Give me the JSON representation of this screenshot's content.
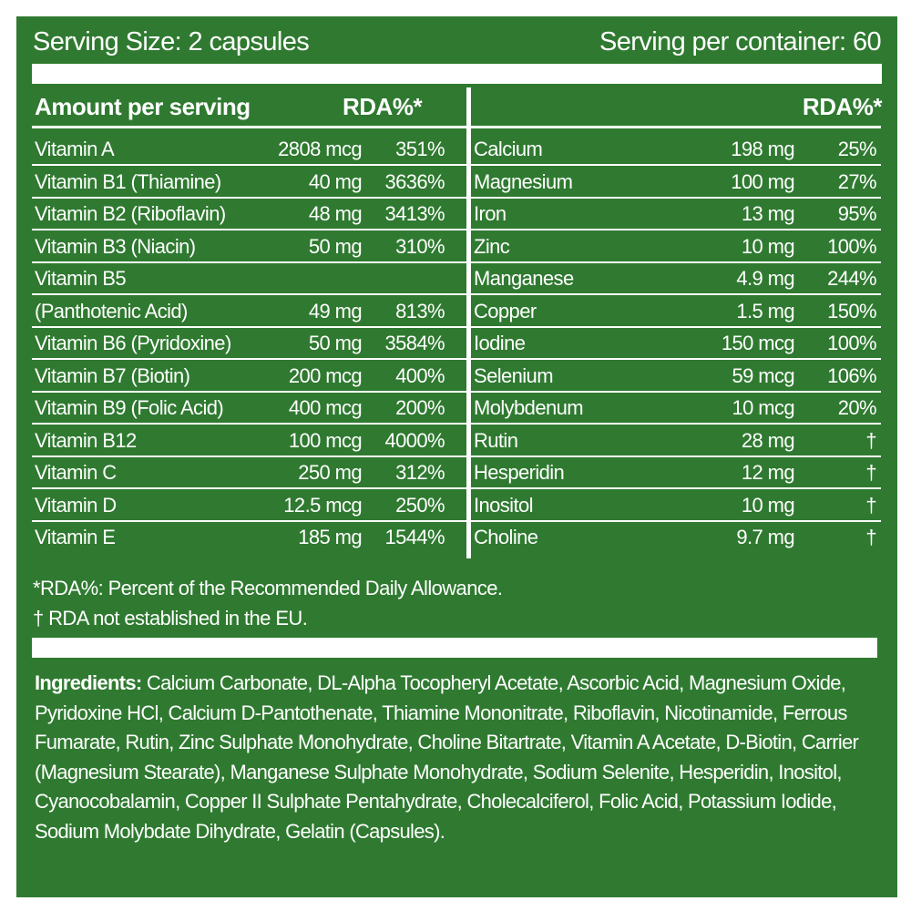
{
  "header": {
    "serving_size": "Serving Size: 2 capsules",
    "servings_per_container": "Serving per container: 60"
  },
  "left_table": {
    "header_name": "Amount per serving",
    "header_rda": "RDA%*",
    "rows": [
      {
        "name": "Vitamin A",
        "amount": "2808 mcg",
        "rda": "351%"
      },
      {
        "name": "Vitamin B1 (Thiamine)",
        "amount": "40 mg",
        "rda": "3636%"
      },
      {
        "name": "Vitamin B2 (Riboflavin)",
        "amount": "48 mg",
        "rda": "3413%"
      },
      {
        "name": "Vitamin B3 (Niacin)",
        "amount": "50 mg",
        "rda": "310%"
      },
      {
        "name": "Vitamin B5",
        "name_line2": "(Panthotenic Acid)",
        "amount": "49 mg",
        "rda": "813%"
      },
      {
        "name": "Vitamin B6 (Pyridoxine)",
        "amount": "50 mg",
        "rda": "3584%"
      },
      {
        "name": "Vitamin B7 (Biotin)",
        "amount": "200 mcg",
        "rda": "400%"
      },
      {
        "name": "Vitamin B9 (Folic Acid)",
        "amount": "400 mcg",
        "rda": "200%"
      },
      {
        "name": "Vitamin B12",
        "amount": "100 mcg",
        "rda": "4000%"
      },
      {
        "name": "Vitamin C",
        "amount": "250 mg",
        "rda": "312%"
      },
      {
        "name": "Vitamin D",
        "amount": "12.5 mcg",
        "rda": "250%"
      },
      {
        "name": "Vitamin E",
        "amount": "185 mg",
        "rda": "1544%"
      }
    ]
  },
  "right_table": {
    "header_rda": "RDA%*",
    "rows": [
      {
        "name": "Calcium",
        "amount": "198 mg",
        "rda": "25%"
      },
      {
        "name": "Magnesium",
        "amount": "100 mg",
        "rda": "27%"
      },
      {
        "name": "Iron",
        "amount": "13 mg",
        "rda": "95%"
      },
      {
        "name": "Zinc",
        "amount": "10 mg",
        "rda": "100%"
      },
      {
        "name": "Manganese",
        "amount": "4.9 mg",
        "rda": "244%"
      },
      {
        "name": "Copper",
        "amount": "1.5 mg",
        "rda": "150%"
      },
      {
        "name": "Iodine",
        "amount": "150 mcg",
        "rda": "100%"
      },
      {
        "name": "Selenium",
        "amount": "59 mcg",
        "rda": "106%"
      },
      {
        "name": "Molybdenum",
        "amount": "10 mcg",
        "rda": "20%"
      },
      {
        "name": "Rutin",
        "amount": "28 mg",
        "rda": "†"
      },
      {
        "name": "Hesperidin",
        "amount": "12 mg",
        "rda": "†"
      },
      {
        "name": "Inositol",
        "amount": "10 mg",
        "rda": "†"
      },
      {
        "name": "Choline",
        "amount": "9.7 mg",
        "rda": "†"
      }
    ]
  },
  "footnotes": [
    "*RDA%: Percent of the Recommended Daily Allowance.",
    "† RDA not established in the EU."
  ],
  "ingredients": {
    "label": "Ingredients:",
    "text": "Calcium Carbonate, DL-Alpha Tocopheryl Acetate, Ascorbic Acid, Magnesium Oxide, Pyridoxine HCl, Calcium D-Pantothenate, Thiamine Mononitrate, Riboflavin, Nicotinamide, Ferrous Fumarate, Rutin, Zinc Sulphate Monohydrate, Choline Bitartrate, Vitamin A Acetate, D-Biotin, Carrier (Magnesium Stearate), Manganese Sulphate Monohydrate, Sodium Selenite, Hesperidin, Inositol, Cyanocobalamin, Copper II Sulphate Pentahydrate, Cholecalciferol, Folic Acid, Potassium Iodide, Sodium Molybdate Dihydrate, Gelatin (Capsules)."
  }
}
